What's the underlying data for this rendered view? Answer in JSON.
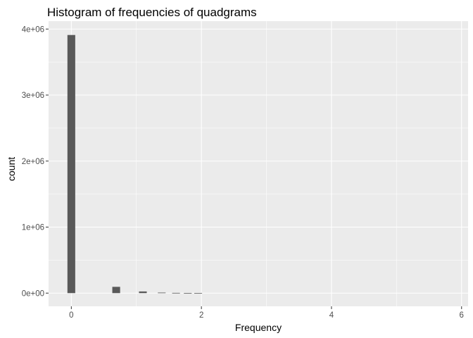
{
  "chart_data": {
    "type": "bar",
    "title": "Histogram of frequencies of quadgrams",
    "xlabel": "Frequency",
    "ylabel": "count",
    "xlim": [
      -0.35,
      6.1
    ],
    "ylim": [
      -200000,
      4120000
    ],
    "x_ticks": [
      0,
      2,
      4,
      6
    ],
    "x_tick_labels": [
      "0",
      "2",
      "4",
      "6"
    ],
    "y_ticks": [
      0,
      1000000,
      2000000,
      3000000,
      4000000
    ],
    "y_tick_labels": [
      "0e+00",
      "1e+06",
      "2e+06",
      "3e+06",
      "4e+06"
    ],
    "bin_width": 0.12,
    "bins": [
      {
        "x": 0.0,
        "count": 3910000
      },
      {
        "x": 0.69,
        "count": 95000
      },
      {
        "x": 1.1,
        "count": 25000
      },
      {
        "x": 1.39,
        "count": 8000
      },
      {
        "x": 1.61,
        "count": 4000
      },
      {
        "x": 1.79,
        "count": 2500
      },
      {
        "x": 1.95,
        "count": 1500
      }
    ],
    "bar_color": "#595959",
    "panel_background": "#ebebeb",
    "grid": true,
    "legend": "none"
  }
}
